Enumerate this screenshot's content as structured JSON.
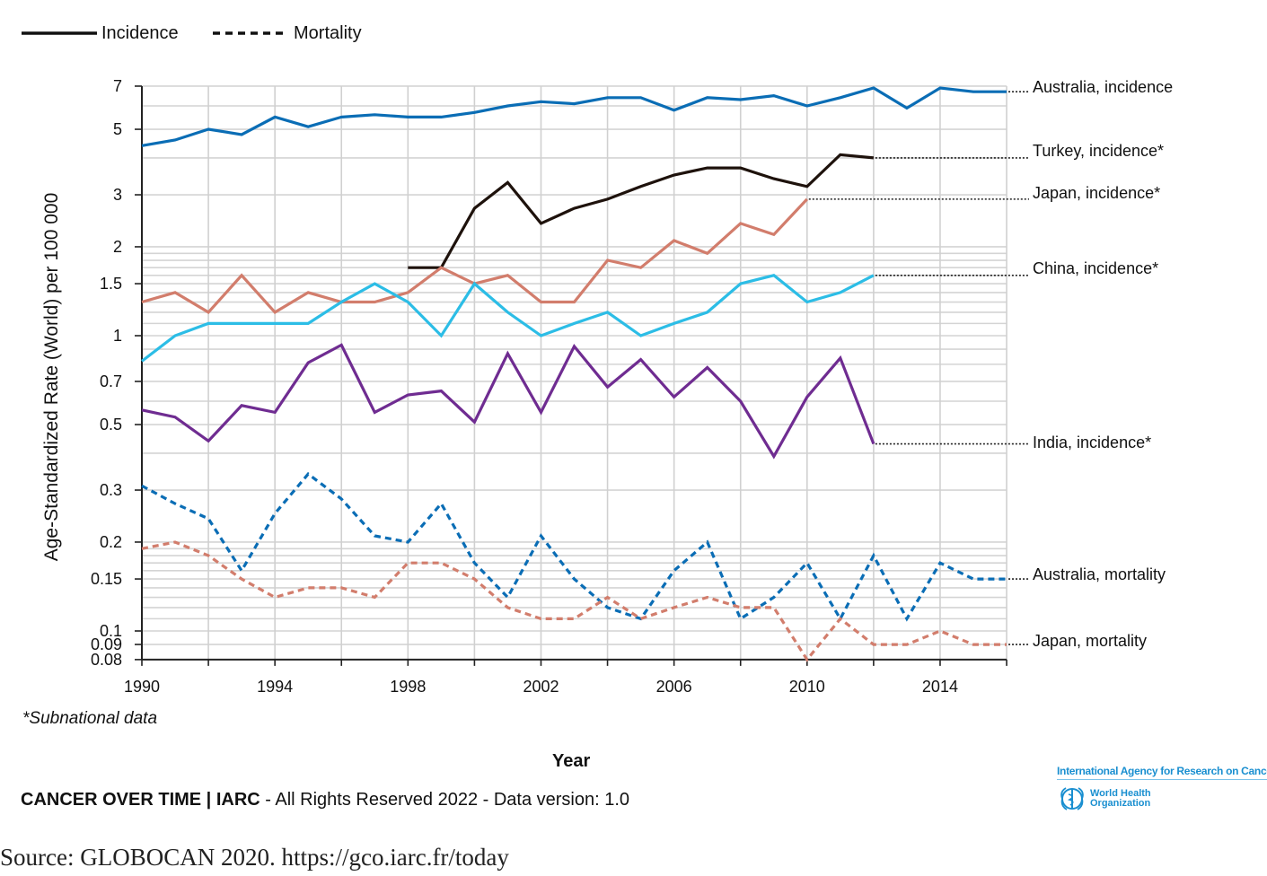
{
  "chart_data": {
    "type": "line",
    "title": "",
    "xlabel": "Year",
    "ylabel": "Age-Standardized Rate (World) per 100 000",
    "y_scale": "log",
    "ylim": [
      0.08,
      7
    ],
    "xlim": [
      1990,
      2016
    ],
    "grid": true,
    "legend_placement": "top-left",
    "legend": [
      {
        "label": "Incidence",
        "style": "solid"
      },
      {
        "label": "Mortality",
        "style": "dashed"
      }
    ],
    "x_ticks": [
      "1990",
      "1994",
      "1998",
      "2002",
      "2006",
      "2010",
      "2014"
    ],
    "y_ticks": [
      {
        "value": 7,
        "label": "7"
      },
      {
        "value": 5,
        "label": "5"
      },
      {
        "value": 3,
        "label": "3"
      },
      {
        "value": 2,
        "label": "2"
      },
      {
        "value": 1.5,
        "label": "1.5"
      },
      {
        "value": 1,
        "label": "1"
      },
      {
        "value": 0.7,
        "label": "0.7"
      },
      {
        "value": 0.5,
        "label": "0.5"
      },
      {
        "value": 0.3,
        "label": "0.3"
      },
      {
        "value": 0.2,
        "label": "0.2"
      },
      {
        "value": 0.15,
        "label": "0.15"
      },
      {
        "value": 0.1,
        "label": "0.1"
      },
      {
        "value": 0.09,
        "label": "0.09"
      },
      {
        "value": 0.08,
        "label": "0.08"
      }
    ],
    "series": [
      {
        "name": "Australia, incidence",
        "color": "#0a6db5",
        "style": "solid",
        "x_start": 1990,
        "values": [
          4.4,
          4.6,
          5.0,
          4.8,
          5.5,
          5.1,
          5.5,
          5.6,
          5.5,
          5.5,
          5.7,
          6.0,
          6.2,
          6.1,
          6.4,
          6.4,
          5.8,
          6.4,
          6.3,
          6.5,
          6.0,
          6.4,
          6.9,
          5.9,
          6.9,
          6.7,
          6.7
        ]
      },
      {
        "name": "Turkey, incidence*",
        "color": "#1e120c",
        "style": "solid",
        "x_start": 1998,
        "values": [
          1.7,
          1.7,
          2.7,
          3.3,
          2.4,
          2.7,
          2.9,
          3.2,
          3.5,
          3.7,
          3.7,
          3.4,
          3.2,
          4.1,
          4.0
        ]
      },
      {
        "name": "Japan, incidence*",
        "color": "#d27d6c",
        "style": "solid",
        "x_start": 1990,
        "values": [
          1.3,
          1.4,
          1.2,
          1.6,
          1.2,
          1.4,
          1.3,
          1.3,
          1.4,
          1.7,
          1.5,
          1.6,
          1.3,
          1.3,
          1.8,
          1.7,
          2.1,
          1.9,
          2.4,
          2.2,
          2.9
        ]
      },
      {
        "name": "China, incidence*",
        "color": "#2cbde6",
        "style": "solid",
        "x_start": 1990,
        "values": [
          0.82,
          1.0,
          1.1,
          1.1,
          1.1,
          1.1,
          1.3,
          1.5,
          1.3,
          1.0,
          1.5,
          1.2,
          1.0,
          1.1,
          1.2,
          1.0,
          1.1,
          1.2,
          1.5,
          1.6,
          1.3,
          1.4,
          1.6
        ]
      },
      {
        "name": "India, incidence*",
        "color": "#6f2c91",
        "style": "solid",
        "x_start": 1990,
        "values": [
          0.56,
          0.53,
          0.44,
          0.58,
          0.55,
          0.81,
          0.93,
          0.55,
          0.63,
          0.65,
          0.51,
          0.87,
          0.55,
          0.92,
          0.67,
          0.83,
          0.62,
          0.78,
          0.6,
          0.39,
          0.62,
          0.84,
          0.43
        ]
      },
      {
        "name": "Australia, mortality",
        "color": "#0a6db5",
        "style": "dashed",
        "x_start": 1990,
        "values": [
          0.31,
          0.27,
          0.24,
          0.16,
          0.25,
          0.34,
          0.28,
          0.21,
          0.2,
          0.27,
          0.17,
          0.13,
          0.21,
          0.15,
          0.12,
          0.11,
          0.16,
          0.2,
          0.11,
          0.13,
          0.17,
          0.11,
          0.18,
          0.11,
          0.17,
          0.15,
          0.15
        ]
      },
      {
        "name": "Japan, mortality",
        "color": "#d27d6c",
        "style": "dashed",
        "x_start": 1990,
        "values": [
          0.19,
          0.2,
          0.18,
          0.15,
          0.13,
          0.14,
          0.14,
          0.13,
          0.17,
          0.17,
          0.15,
          0.12,
          0.11,
          0.11,
          0.13,
          0.11,
          0.12,
          0.13,
          0.12,
          0.12,
          0.08,
          0.11,
          0.09,
          0.09,
          0.1,
          0.09,
          0.09
        ]
      }
    ],
    "footnote": "*Subnational data"
  },
  "footer": {
    "brand": "CANCER OVER TIME | IARC",
    "rest": " - All Rights Reserved 2022 - Data version: 1.0",
    "iarc_logo_text": "International Agency for Research on Cancer",
    "who_logo_line1": "World Health",
    "who_logo_line2": "Organization"
  },
  "source": "Source: GLOBOCAN 2020. https://gco.iarc.fr/today"
}
